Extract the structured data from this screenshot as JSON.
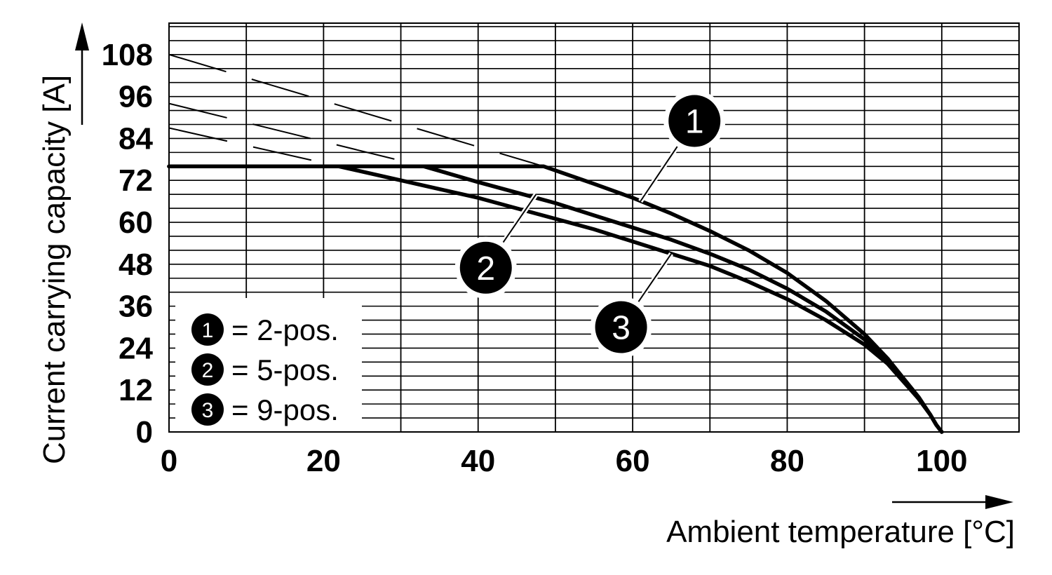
{
  "chart_data": {
    "type": "line",
    "xlabel": "Ambient temperature [°C]",
    "ylabel": "Current carrying capacity [A]",
    "xlim": [
      0,
      110
    ],
    "ylim": [
      0,
      117
    ],
    "x_ticks": [
      0,
      20,
      40,
      60,
      80,
      100
    ],
    "y_ticks": [
      0,
      12,
      24,
      36,
      48,
      60,
      72,
      84,
      96,
      108
    ],
    "x_grid_step": 10,
    "y_grid_step": 4,
    "grid": true,
    "legend_position": "bottom-left",
    "series": [
      {
        "id": "1",
        "name": "2-pos.",
        "points": [
          [
            0,
            76
          ],
          [
            48.5,
            76
          ],
          [
            55,
            71
          ],
          [
            60,
            67
          ],
          [
            65,
            62.5
          ],
          [
            70,
            57.5
          ],
          [
            75,
            52
          ],
          [
            80,
            45.5
          ],
          [
            85,
            37.5
          ],
          [
            90,
            28
          ],
          [
            93,
            21
          ],
          [
            95,
            15.5
          ],
          [
            97,
            10
          ],
          [
            98.5,
            5
          ],
          [
            99.3,
            2
          ],
          [
            100,
            0
          ]
        ],
        "dashed_extension": [
          [
            0,
            108
          ],
          [
            48.5,
            76
          ]
        ]
      },
      {
        "id": "2",
        "name": "5-pos.",
        "points": [
          [
            0,
            76
          ],
          [
            33,
            76
          ],
          [
            40,
            71.5
          ],
          [
            45,
            68.5
          ],
          [
            50,
            65.5
          ],
          [
            55,
            62
          ],
          [
            60,
            58.5
          ],
          [
            65,
            55
          ],
          [
            70,
            51
          ],
          [
            75,
            46.5
          ],
          [
            80,
            41
          ],
          [
            85,
            34.5
          ],
          [
            90,
            26.5
          ],
          [
            93,
            20
          ],
          [
            95,
            15
          ],
          [
            97,
            9.5
          ],
          [
            98.5,
            5
          ],
          [
            99.3,
            2
          ],
          [
            100,
            0
          ]
        ],
        "dashed_extension": [
          [
            0,
            94
          ],
          [
            33,
            76
          ]
        ]
      },
      {
        "id": "3",
        "name": "9-pos.",
        "points": [
          [
            0,
            76
          ],
          [
            22,
            76
          ],
          [
            30,
            72
          ],
          [
            35,
            69.5
          ],
          [
            40,
            67
          ],
          [
            45,
            64
          ],
          [
            50,
            61
          ],
          [
            55,
            58
          ],
          [
            60,
            54.5
          ],
          [
            65,
            51
          ],
          [
            70,
            47.5
          ],
          [
            75,
            43
          ],
          [
            80,
            38
          ],
          [
            85,
            32
          ],
          [
            90,
            25
          ],
          [
            93,
            19.5
          ],
          [
            95,
            14.5
          ],
          [
            97,
            9.5
          ],
          [
            98.5,
            5
          ],
          [
            99.3,
            2
          ],
          [
            100,
            0
          ]
        ],
        "dashed_extension": [
          [
            0,
            87
          ],
          [
            22,
            76
          ]
        ]
      }
    ],
    "callouts": [
      {
        "id": "1",
        "anchor": [
          61,
          66
        ],
        "badge": [
          68,
          89
        ]
      },
      {
        "id": "2",
        "anchor": [
          47.5,
          68
        ],
        "badge": [
          41,
          47
        ]
      },
      {
        "id": "3",
        "anchor": [
          65,
          51
        ],
        "badge": [
          58.5,
          30
        ]
      }
    ],
    "legend": [
      {
        "id": "1",
        "text": "= 2-pos."
      },
      {
        "id": "2",
        "text": "= 5-pos."
      },
      {
        "id": "3",
        "text": "= 9-pos."
      }
    ]
  }
}
